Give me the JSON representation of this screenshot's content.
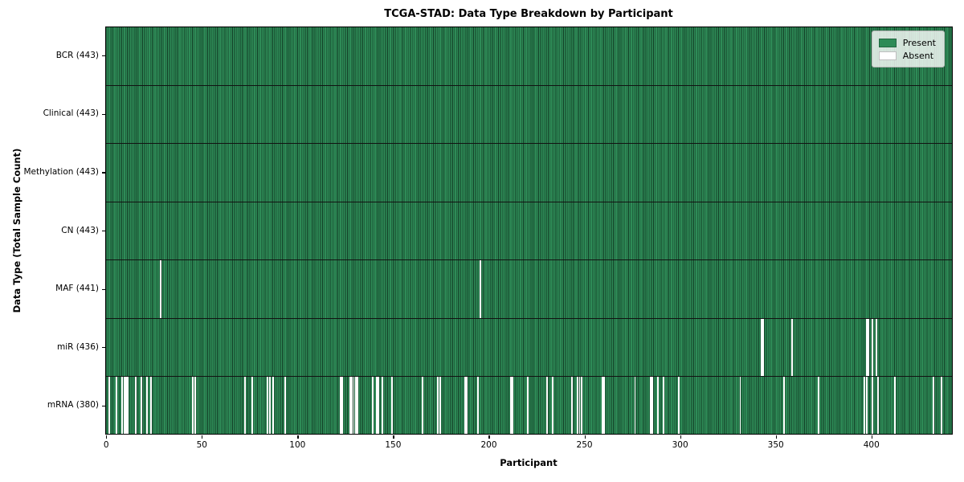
{
  "chart_data": {
    "type": "heatmap",
    "title": "TCGA-STAD: Data Type Breakdown by Participant",
    "xlabel": "Participant",
    "ylabel": "Data Type (Total Sample Count)",
    "x_ticks": [
      0,
      50,
      100,
      150,
      200,
      250,
      300,
      350,
      400
    ],
    "n_participants": 443,
    "grid": false,
    "legend": {
      "position": "upper right",
      "entries": [
        {
          "label": "Present",
          "color": "#2e8b57"
        },
        {
          "label": "Absent",
          "color": "#ffffff"
        }
      ]
    },
    "colors": {
      "present": "#2e8b57",
      "absent": "#ffffff",
      "bar_edge": "rgba(8,32,19,0.72)",
      "row_separator": "#121212"
    },
    "rows": [
      {
        "label": "BCR (443)",
        "present_count": 443,
        "absent_participants": []
      },
      {
        "label": "Clinical (443)",
        "present_count": 443,
        "absent_participants": []
      },
      {
        "label": "Methylation (443)",
        "present_count": 443,
        "absent_participants": []
      },
      {
        "label": "CN (443)",
        "present_count": 443,
        "absent_participants": []
      },
      {
        "label": "MAF (441)",
        "present_count": 441,
        "absent_participants": [
          28,
          195
        ]
      },
      {
        "label": "miR (436)",
        "present_count": 436,
        "absent_participants": [
          342,
          343,
          358,
          397,
          398,
          400,
          402
        ]
      },
      {
        "label": "mRNA (380)",
        "present_count": 380,
        "absent_participants": [
          1,
          5,
          8,
          9,
          10,
          11,
          15,
          18,
          21,
          23,
          45,
          46,
          72,
          76,
          84,
          85,
          87,
          93,
          122,
          123,
          127,
          128,
          129,
          130,
          131,
          139,
          141,
          142,
          144,
          149,
          165,
          173,
          174,
          187,
          188,
          194,
          211,
          212,
          220,
          230,
          233,
          243,
          246,
          247,
          248,
          259,
          260,
          276,
          284,
          285,
          288,
          291,
          299,
          331,
          354,
          372,
          396,
          397,
          400,
          403,
          412,
          432,
          436
        ]
      }
    ]
  }
}
